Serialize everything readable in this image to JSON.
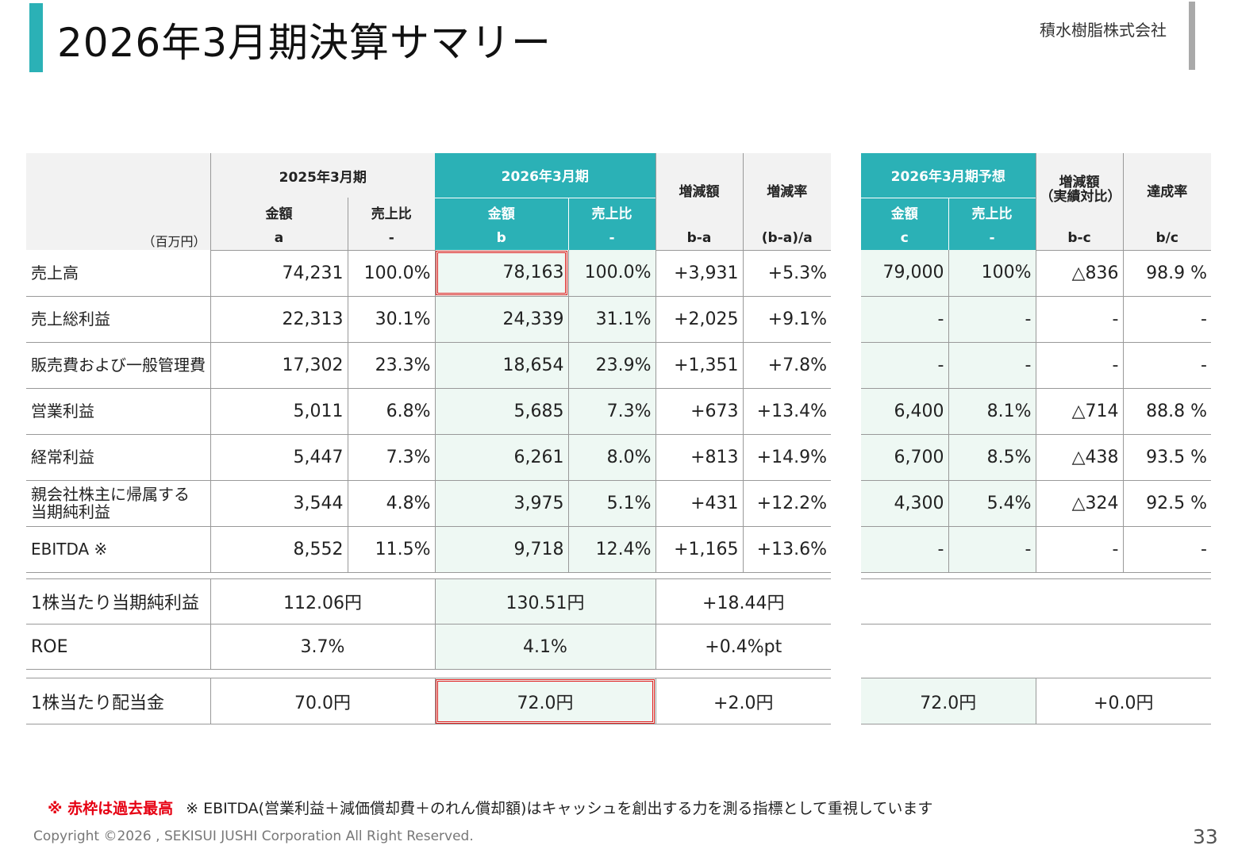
{
  "title": "2026年3月期決算サマリー",
  "company": "積水樹脂株式会社",
  "accent_color": "#2bb1b6",
  "highlight_color": "#eef8f3",
  "record_frame_color": "#e02020",
  "unit": "（百万円）",
  "headers": {
    "fy2025": "2025年3月期",
    "fy2026": "2026年3月期",
    "change_amount": "増減額",
    "change_rate": "増減率",
    "amount": "金額",
    "ratio": "売上比",
    "a": "a",
    "dash": "-",
    "b": "b",
    "b_minus_a": "b-a",
    "rate_formula": "(b-a)/a",
    "forecast": "2026年3月期予想",
    "diff_actual": "増減額\n（実績対比）",
    "achievement": "達成率",
    "c": "c",
    "b_minus_c": "b-c",
    "b_over_c": "b/c"
  },
  "rows": [
    {
      "label": "売上高",
      "a": "74,231",
      "a_ratio": "100.0%",
      "b": "78,163",
      "b_ratio": "100.0%",
      "diff": "+3,931",
      "rate": "+5.3%",
      "c": "79,000",
      "c_ratio": "100%",
      "bc": "△836",
      "ach": "98.9 %"
    },
    {
      "label": "売上総利益",
      "a": "22,313",
      "a_ratio": "30.1%",
      "b": "24,339",
      "b_ratio": "31.1%",
      "diff": "+2,025",
      "rate": "+9.1%",
      "c": "-",
      "c_ratio": "-",
      "bc": "-",
      "ach": "-"
    },
    {
      "label": "販売費および一般管理費",
      "a": "17,302",
      "a_ratio": "23.3%",
      "b": "18,654",
      "b_ratio": "23.9%",
      "diff": "+1,351",
      "rate": "+7.8%",
      "c": "-",
      "c_ratio": "-",
      "bc": "-",
      "ach": "-"
    },
    {
      "label": "営業利益",
      "a": "5,011",
      "a_ratio": "6.8%",
      "b": "5,685",
      "b_ratio": "7.3%",
      "diff": "+673",
      "rate": "+13.4%",
      "c": "6,400",
      "c_ratio": "8.1%",
      "bc": "△714",
      "ach": "88.8 %"
    },
    {
      "label": "経常利益",
      "a": "5,447",
      "a_ratio": "7.3%",
      "b": "6,261",
      "b_ratio": "8.0%",
      "diff": "+813",
      "rate": "+14.9%",
      "c": "6,700",
      "c_ratio": "8.5%",
      "bc": "△438",
      "ach": "93.5 %"
    },
    {
      "label": "親会社株主に帰属する\n当期純利益",
      "a": "3,544",
      "a_ratio": "4.8%",
      "b": "3,975",
      "b_ratio": "5.1%",
      "diff": "+431",
      "rate": "+12.2%",
      "c": "4,300",
      "c_ratio": "5.4%",
      "bc": "△324",
      "ach": "92.5 %"
    },
    {
      "label": "EBITDA ※",
      "a": "8,552",
      "a_ratio": "11.5%",
      "b": "9,718",
      "b_ratio": "12.4%",
      "diff": "+1,165",
      "rate": "+13.6%",
      "c": "-",
      "c_ratio": "-",
      "bc": "-",
      "ach": "-"
    }
  ],
  "eps": {
    "label": "1株当たり当期純利益",
    "a": "112.06円",
    "b": "130.51円",
    "diff": "+18.44円"
  },
  "roe": {
    "label": "ROE",
    "a": "3.7%",
    "b": "4.1%",
    "diff": "+0.4%pt"
  },
  "dividend": {
    "label": "1株当たり配当金",
    "a": "70.0円",
    "b": "72.0円",
    "diff": "+2.0円",
    "c": "72.0円",
    "cdiff": "+0.0円"
  },
  "notes": {
    "red": "※ 赤枠は過去最高",
    "ebitda": "※ EBITDA(営業利益＋減価償却費＋のれん償却額)はキャッシュを創出する力を測る指標として重視しています"
  },
  "copyright": "Copyright ©2026 , SEKISUI JUSHI Corporation All Right Reserved.",
  "page_number": "33"
}
